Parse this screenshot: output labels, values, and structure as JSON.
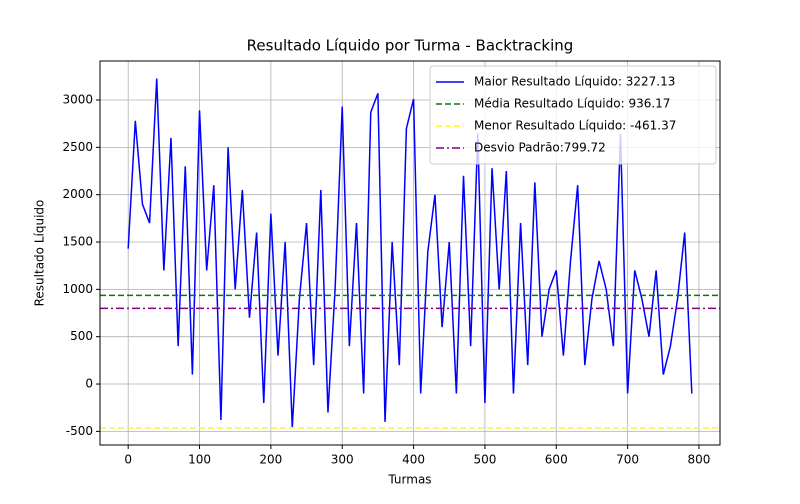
{
  "chart_data": {
    "type": "line",
    "title": "Resultado Líquido por Turma - Backtracking",
    "x_label": "Turmas",
    "y_label": "Resultado Líquido",
    "x": [
      0,
      10,
      20,
      30,
      40,
      50,
      60,
      70,
      80,
      90,
      100,
      110,
      120,
      130,
      140,
      150,
      160,
      170,
      180,
      190,
      200,
      210,
      220,
      230,
      240,
      250,
      260,
      270,
      280,
      290,
      300,
      310,
      320,
      330,
      340,
      350,
      360,
      370,
      380,
      390,
      400,
      410,
      420,
      430,
      440,
      450,
      460,
      470,
      480,
      490,
      500,
      510,
      520,
      530,
      540,
      550,
      560,
      570,
      580,
      590,
      600,
      610,
      620,
      630,
      640,
      650,
      660,
      670,
      680,
      690,
      700,
      710,
      720,
      730,
      740,
      750,
      760,
      770,
      780,
      790
    ],
    "series": [
      {
        "name": "Maior Resultado Líquido: 3227.13",
        "color": "#0000ff",
        "values": [
          1430,
          2780,
          1900,
          1700,
          3227.13,
          1200,
          2600,
          400,
          2300,
          100,
          2890,
          1200,
          2100,
          -380,
          2500,
          1000,
          2050,
          700,
          1600,
          -200,
          1800,
          300,
          1500,
          -461.37,
          900,
          1700,
          200,
          2050,
          -300,
          1000,
          2930,
          400,
          1700,
          -100,
          2870,
          3070,
          -400,
          1500,
          200,
          2700,
          3010,
          -100,
          1400,
          2000,
          600,
          1500,
          -100,
          2200,
          400,
          2650,
          -200,
          2280,
          1000,
          2250,
          -100,
          1700,
          200,
          2130,
          500,
          1000,
          1200,
          300,
          1300,
          2100,
          200,
          900,
          1300,
          1000,
          400,
          2640,
          -100,
          1200,
          900,
          500,
          1200,
          100,
          400,
          900,
          1600,
          -100
        ]
      }
    ],
    "hlines": [
      {
        "name": "Média Resultado Líquido: 936.17",
        "color": "#008000",
        "value": 936.17,
        "dash": "dashed"
      },
      {
        "name": "Menor Resultado Líquido: -461.37",
        "color": "#ffff00",
        "value": -461.37,
        "dash": "dashed"
      },
      {
        "name": "Desvio Padrão:799.72",
        "color": "#800080",
        "value": 799.72,
        "dash": "dashdot"
      }
    ],
    "xlim": [
      -39.5,
      829.5
    ],
    "ylim": [
      -644,
      3412
    ],
    "xticks": [
      0,
      100,
      200,
      300,
      400,
      500,
      600,
      700,
      800
    ],
    "yticks": [
      -500,
      0,
      500,
      1000,
      1500,
      2000,
      2500,
      3000
    ],
    "grid": true,
    "legend": "upper right"
  }
}
